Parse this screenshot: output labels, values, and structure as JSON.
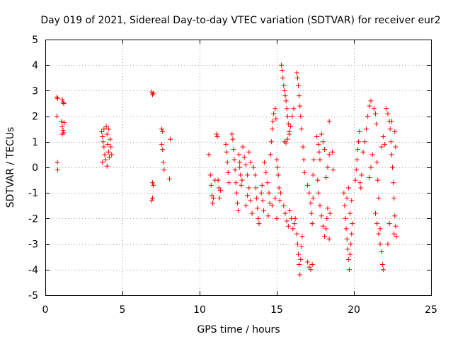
{
  "chart_data": {
    "type": "scatter",
    "title": "Day 019 of 2021, Sidereal Day-to-day VTEC variation (SDTVAR) for receiver eur2",
    "xlabel": "GPS time / hours",
    "ylabel": "SDTVAR / TECUs",
    "xlim": [
      0,
      25
    ],
    "ylim": [
      -5,
      5
    ],
    "xticks": [
      0,
      5,
      10,
      15,
      20,
      25
    ],
    "yticks": [
      -5,
      -4,
      -3,
      -2,
      -1,
      0,
      1,
      2,
      3,
      4,
      5
    ],
    "x_tick_labels": [
      "0",
      "5",
      "10",
      "15",
      "20",
      "25"
    ],
    "y_tick_labels": [
      "-5",
      "-4",
      "-3",
      "-2",
      "-1",
      "0",
      "1",
      "2",
      "3",
      "4",
      "5"
    ],
    "grid": true,
    "marker": "+",
    "color": "#ff0000",
    "series": [
      {
        "name": "SDTVAR",
        "points": [
          [
            0.75,
            2.75
          ],
          [
            0.8,
            2.7
          ],
          [
            0.75,
            2.0
          ],
          [
            0.78,
            0.2
          ],
          [
            0.8,
            -0.1
          ],
          [
            1.1,
            2.65
          ],
          [
            1.15,
            2.55
          ],
          [
            1.2,
            2.5
          ],
          [
            1.05,
            1.8
          ],
          [
            1.1,
            1.6
          ],
          [
            1.15,
            1.45
          ],
          [
            1.2,
            1.35
          ],
          [
            1.1,
            1.3
          ],
          [
            1.22,
            1.75
          ],
          [
            3.65,
            1.4
          ],
          [
            3.7,
            1.2
          ],
          [
            3.75,
            1.0
          ],
          [
            3.8,
            0.8
          ],
          [
            3.85,
            0.5
          ],
          [
            3.9,
            0.3
          ],
          [
            3.95,
            1.6
          ],
          [
            4.0,
            1.3
          ],
          [
            4.05,
            0.9
          ],
          [
            4.1,
            0.6
          ],
          [
            4.15,
            0.4
          ],
          [
            4.2,
            1.1
          ],
          [
            4.25,
            0.8
          ],
          [
            3.7,
            0.2
          ],
          [
            4.0,
            0.05
          ],
          [
            4.3,
            0.5
          ],
          [
            3.8,
            1.5
          ],
          [
            4.1,
            1.5
          ],
          [
            6.9,
            2.95
          ],
          [
            6.95,
            2.85
          ],
          [
            7.0,
            2.9
          ],
          [
            6.95,
            -0.6
          ],
          [
            7.0,
            -0.7
          ],
          [
            6.9,
            -1.3
          ],
          [
            6.95,
            -1.2
          ],
          [
            7.55,
            1.5
          ],
          [
            7.6,
            1.4
          ],
          [
            7.55,
            0.9
          ],
          [
            7.6,
            0.7
          ],
          [
            7.65,
            0.2
          ],
          [
            7.7,
            -0.1
          ],
          [
            8.1,
            1.1
          ],
          [
            8.05,
            -0.45
          ],
          [
            10.6,
            0.5
          ],
          [
            10.7,
            -0.3
          ],
          [
            10.75,
            -0.7
          ],
          [
            10.8,
            -1.1
          ],
          [
            10.85,
            -1.4
          ],
          [
            10.9,
            -1.2
          ],
          [
            11.0,
            -0.5
          ],
          [
            11.1,
            1.3
          ],
          [
            11.15,
            1.2
          ],
          [
            11.2,
            -0.5
          ],
          [
            11.25,
            -0.8
          ],
          [
            11.3,
            -1.2
          ],
          [
            11.35,
            -0.9
          ],
          [
            11.7,
            0.9
          ],
          [
            11.75,
            0.6
          ],
          [
            11.8,
            0.2
          ],
          [
            11.85,
            -0.2
          ],
          [
            11.9,
            -0.6
          ],
          [
            12.1,
            1.3
          ],
          [
            12.15,
            1.1
          ],
          [
            12.2,
            0.7
          ],
          [
            12.25,
            0.3
          ],
          [
            12.3,
            -0.1
          ],
          [
            12.35,
            -0.6
          ],
          [
            12.4,
            -1.0
          ],
          [
            12.45,
            -1.4
          ],
          [
            12.5,
            -1.7
          ],
          [
            12.55,
            0.5
          ],
          [
            12.6,
            0.2
          ],
          [
            12.65,
            -0.3
          ],
          [
            12.7,
            -0.7
          ],
          [
            12.8,
            0.8
          ],
          [
            12.9,
            0.4
          ],
          [
            13.0,
            0.1
          ],
          [
            13.1,
            -0.3
          ],
          [
            13.2,
            -0.8
          ],
          [
            13.3,
            -1.3
          ],
          [
            13.4,
            -1.8
          ],
          [
            13.0,
            -1.5
          ],
          [
            13.1,
            -1.1
          ],
          [
            13.2,
            0.6
          ],
          [
            13.3,
            0.2
          ],
          [
            12.6,
            0.0
          ],
          [
            12.75,
            -0.5
          ],
          [
            13.5,
            0.0
          ],
          [
            13.6,
            -0.3
          ],
          [
            13.65,
            -0.8
          ],
          [
            13.7,
            -1.2
          ],
          [
            13.75,
            -1.6
          ],
          [
            13.8,
            -2.0
          ],
          [
            13.85,
            -2.2
          ],
          [
            14.0,
            -1.0
          ],
          [
            14.05,
            -0.7
          ],
          [
            14.1,
            -1.3
          ],
          [
            14.15,
            -1.7
          ],
          [
            14.2,
            0.2
          ],
          [
            14.3,
            -0.2
          ],
          [
            14.4,
            -0.6
          ],
          [
            14.5,
            -1.0
          ],
          [
            14.55,
            -1.4
          ],
          [
            14.6,
            0.5
          ],
          [
            14.65,
            1.0
          ],
          [
            14.7,
            1.5
          ],
          [
            14.75,
            1.8
          ],
          [
            14.8,
            2.1
          ],
          [
            14.9,
            2.3
          ],
          [
            14.95,
            1.9
          ],
          [
            15.0,
            0.3
          ],
          [
            15.05,
            0.0
          ],
          [
            15.1,
            -0.3
          ],
          [
            15.15,
            -0.8
          ],
          [
            15.2,
            -1.3
          ],
          [
            15.25,
            -1.0
          ],
          [
            14.45,
            -1.9
          ],
          [
            14.7,
            -1.5
          ],
          [
            14.9,
            -1.2
          ],
          [
            15.0,
            -2.0
          ],
          [
            15.3,
            4.0
          ],
          [
            15.35,
            3.8
          ],
          [
            15.4,
            3.5
          ],
          [
            15.45,
            3.2
          ],
          [
            15.5,
            3.0
          ],
          [
            15.55,
            2.8
          ],
          [
            15.6,
            2.6
          ],
          [
            15.65,
            2.3
          ],
          [
            15.7,
            2.0
          ],
          [
            15.75,
            1.7
          ],
          [
            15.8,
            1.4
          ],
          [
            15.5,
            1.0
          ],
          [
            15.6,
            0.95
          ],
          [
            15.7,
            1.1
          ],
          [
            15.8,
            1.3
          ],
          [
            15.9,
            1.6
          ],
          [
            16.0,
            2.0
          ],
          [
            16.1,
            2.3
          ],
          [
            15.45,
            -1.5
          ],
          [
            15.55,
            -1.8
          ],
          [
            15.65,
            -2.1
          ],
          [
            15.75,
            -2.3
          ],
          [
            15.85,
            -1.7
          ],
          [
            15.95,
            -2.0
          ],
          [
            16.05,
            -2.4
          ],
          [
            16.15,
            -2.2
          ],
          [
            16.3,
            3.7
          ],
          [
            16.35,
            3.5
          ],
          [
            16.4,
            3.2
          ],
          [
            16.45,
            2.8
          ],
          [
            16.5,
            2.4
          ],
          [
            16.55,
            2.0
          ],
          [
            16.6,
            1.5
          ],
          [
            16.2,
            -2.0
          ],
          [
            16.3,
            -2.6
          ],
          [
            16.35,
            -3.0
          ],
          [
            16.4,
            -3.4
          ],
          [
            16.45,
            -3.8
          ],
          [
            16.5,
            -4.2
          ],
          [
            16.55,
            -3.6
          ],
          [
            16.6,
            -3.1
          ],
          [
            16.65,
            -2.7
          ],
          [
            16.7,
            0.8
          ],
          [
            16.75,
            0.3
          ],
          [
            16.8,
            -0.2
          ],
          [
            17.0,
            -0.7
          ],
          [
            17.1,
            -1.0
          ],
          [
            17.2,
            -1.4
          ],
          [
            17.25,
            -1.8
          ],
          [
            17.3,
            -2.2
          ],
          [
            17.35,
            -1.2
          ],
          [
            17.0,
            -3.7
          ],
          [
            17.1,
            -3.9
          ],
          [
            17.2,
            -4.0
          ],
          [
            17.3,
            -3.8
          ],
          [
            17.4,
            0.3
          ],
          [
            17.35,
            -0.3
          ],
          [
            17.6,
            1.2
          ],
          [
            17.7,
            0.9
          ],
          [
            17.75,
            0.6
          ],
          [
            17.8,
            0.3
          ],
          [
            17.9,
            1.3
          ],
          [
            18.0,
            1.0
          ],
          [
            18.1,
            0.7
          ],
          [
            17.65,
            -0.5
          ],
          [
            17.7,
            -1.0
          ],
          [
            17.8,
            -1.5
          ],
          [
            17.9,
            -1.9
          ],
          [
            18.0,
            -2.3
          ],
          [
            18.1,
            -2.7
          ],
          [
            18.2,
            -2.4
          ],
          [
            18.25,
            -2.0
          ],
          [
            18.3,
            -1.6
          ],
          [
            18.2,
            -0.4
          ],
          [
            18.3,
            0.0
          ],
          [
            18.4,
            0.5
          ],
          [
            18.4,
            1.8
          ],
          [
            18.6,
            0.6
          ],
          [
            18.65,
            -0.1
          ],
          [
            18.45,
            -1.8
          ],
          [
            18.4,
            -2.8
          ],
          [
            19.35,
            -1.0
          ],
          [
            19.4,
            -1.5
          ],
          [
            19.45,
            -2.0
          ],
          [
            19.5,
            -2.4
          ],
          [
            19.55,
            -2.8
          ],
          [
            19.6,
            -3.2
          ],
          [
            19.65,
            -3.6
          ],
          [
            19.7,
            -4.0
          ],
          [
            19.75,
            -3.4
          ],
          [
            19.8,
            -3.0
          ],
          [
            19.85,
            -2.6
          ],
          [
            19.9,
            -2.2
          ],
          [
            19.55,
            -1.2
          ],
          [
            19.65,
            -0.8
          ],
          [
            19.75,
            -1.8
          ],
          [
            19.85,
            -1.3
          ],
          [
            20.1,
            -0.5
          ],
          [
            20.15,
            -0.1
          ],
          [
            20.2,
            0.3
          ],
          [
            20.25,
            0.7
          ],
          [
            20.3,
            1.0
          ],
          [
            20.35,
            1.4
          ],
          [
            20.4,
            -0.6
          ],
          [
            20.45,
            -0.8
          ],
          [
            20.5,
            -0.3
          ],
          [
            20.6,
            0.6
          ],
          [
            20.7,
            1.0
          ],
          [
            20.8,
            1.5
          ],
          [
            20.9,
            2.0
          ],
          [
            21.0,
            2.4
          ],
          [
            21.1,
            2.6
          ],
          [
            21.0,
            -0.4
          ],
          [
            21.1,
            0.0
          ],
          [
            21.2,
            0.5
          ],
          [
            21.3,
            2.3
          ],
          [
            21.4,
            2.1
          ],
          [
            21.45,
            1.7
          ],
          [
            21.5,
            0.2
          ],
          [
            21.55,
            -0.5
          ],
          [
            21.6,
            -1.2
          ],
          [
            21.4,
            -1.8
          ],
          [
            21.5,
            -2.2
          ],
          [
            21.6,
            -2.6
          ],
          [
            21.7,
            -3.0
          ],
          [
            21.8,
            -3.3
          ],
          [
            21.85,
            -3.8
          ],
          [
            21.9,
            -4.0
          ],
          [
            21.7,
            -2.4
          ],
          [
            21.8,
            0.8
          ],
          [
            21.9,
            1.2
          ],
          [
            22.0,
            0.9
          ],
          [
            22.1,
            2.3
          ],
          [
            22.2,
            2.1
          ],
          [
            22.3,
            1.8
          ],
          [
            22.35,
            1.5
          ],
          [
            22.4,
            1.0
          ],
          [
            22.45,
            0.5
          ],
          [
            22.5,
            0.0
          ],
          [
            22.55,
            -0.6
          ],
          [
            22.6,
            -1.2
          ],
          [
            22.65,
            -1.9
          ],
          [
            22.7,
            -2.3
          ],
          [
            22.75,
            -2.7
          ],
          [
            22.6,
            -2.6
          ],
          [
            22.2,
            -3.0
          ],
          [
            22.3,
            -2.2
          ],
          [
            22.45,
            1.8
          ],
          [
            22.65,
            1.4
          ],
          [
            22.7,
            0.8
          ]
        ]
      }
    ]
  }
}
